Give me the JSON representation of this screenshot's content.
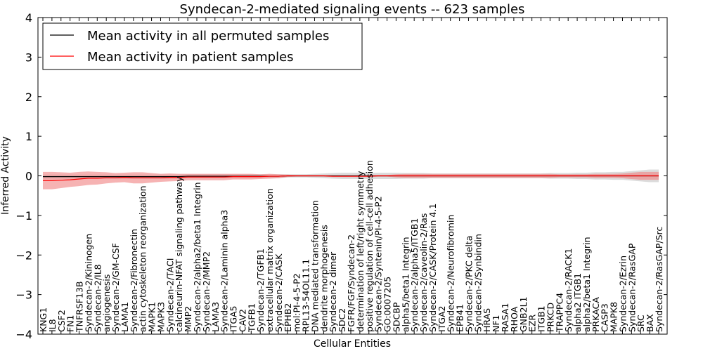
{
  "chart_data": {
    "type": "line",
    "title": "Syndecan-2-mediated signaling events -- 623 samples",
    "xlabel": "Cellular Entities",
    "ylabel": "Inferred Activity",
    "ylim": [
      -4,
      4
    ],
    "yticks": [
      -4,
      -3,
      -2,
      -1,
      0,
      1,
      2,
      3,
      4
    ],
    "ytick_labels": [
      "−4",
      "−3",
      "−2",
      "−1",
      "0",
      "1",
      "2",
      "3",
      "4"
    ],
    "grid": false,
    "legend_position": "top-left",
    "categories": [
      "KNG1",
      "IL8",
      "CSF2",
      "FN1",
      "TNFRSF13B",
      "Syndecan-2/Kininogen",
      "Syndecan-2/IL8",
      "angiogenesis",
      "Syndecan-2/GM-CSF",
      "LAMA1",
      "Syndecan-2/Fibronectin",
      "actin cytoskeleton reorganization",
      "MAPK1",
      "MAPK3",
      "Syndecan-2/TACI",
      "calcineurin-NFAT signaling pathway",
      "MMP2",
      "Syndecan-2/alpha2/beta1 Integrin",
      "Syndecan-2/MMP2",
      "LAMA3",
      "Syndecan-2/Laminin alpha3",
      "ITGA5",
      "CAV2",
      "TGFB1",
      "Syndecan-2/TGFB1",
      "extracellular matrix organization",
      "Syndecan-2/CASK",
      "EPHB2",
      "mol:PI-4-5-P2",
      "RPL13-54OL11.1",
      "DNA mediated transformation",
      "dendrite morphogenesis",
      "Syndecan-2 dimer",
      "SDC2",
      "FGFR/FGF/Syndecan-2",
      "determination of left/right symmetry",
      "positive regulation of cell-cell adhesion",
      "Syndecan-2/Syntenin/PI-4-5-P2",
      "GO:0007205",
      "SDCBP",
      "alpha5/beta1 Integrin",
      "Syndecan-2/alpha5/ITGB1",
      "Syndecan-2/caveolin-2/Ras",
      "Syndecan-2/CASK/Protein 4.1",
      "ITGA2",
      "Syndecan-2/Neurofibromin",
      "EPB41",
      "Syndecan-2/PKC delta",
      "Syndecan-2/Synbindin",
      "HRAS",
      "NF1",
      "RASA1",
      "RHOA",
      "GNB2L1",
      "EZR",
      "ITGB1",
      "PRKCD",
      "TRAPPC4",
      "Syndecan-2/RACK1",
      "alpha2 ITGB1",
      "alpha2/beta1 Integrin",
      "PRKACA",
      "CASP3",
      "MAPK8",
      "Syndecan-2/Ezrin",
      "Syndecan-2/RasGAP",
      "SRC",
      "BAX",
      "Syndecan-2/RasGAP/Src"
    ],
    "series": [
      {
        "name": "Mean activity in all permuted samples",
        "color": "#000000",
        "band_color": "#c0c0c0",
        "values": [
          -0.02,
          -0.02,
          -0.02,
          -0.02,
          -0.02,
          -0.02,
          -0.02,
          -0.02,
          -0.02,
          -0.02,
          -0.02,
          -0.02,
          -0.02,
          -0.02,
          -0.02,
          -0.02,
          -0.01,
          -0.01,
          -0.01,
          -0.01,
          -0.01,
          -0.01,
          -0.01,
          -0.01,
          -0.01,
          -0.01,
          -0.01,
          0,
          0,
          0,
          0,
          0,
          0,
          0,
          0,
          0,
          0,
          0,
          0,
          0,
          0,
          0,
          0,
          0,
          0,
          0,
          0,
          0,
          0,
          0,
          0,
          0,
          0,
          0,
          0,
          0,
          0,
          0,
          0,
          0,
          0,
          0,
          0,
          0,
          0,
          0,
          0,
          0,
          0
        ],
        "band": [
          0.05,
          0.05,
          0.05,
          0.05,
          0.05,
          0.05,
          0.05,
          0.05,
          0.05,
          0.05,
          0.05,
          0.05,
          0.05,
          0.05,
          0.05,
          0.05,
          0.05,
          0.05,
          0.05,
          0.05,
          0.05,
          0.05,
          0.05,
          0.05,
          0.05,
          0.05,
          0.05,
          0.04,
          0.04,
          0.04,
          0.05,
          0.06,
          0.07,
          0.08,
          0.08,
          0.08,
          0.08,
          0.08,
          0.08,
          0.08,
          0.07,
          0.07,
          0.07,
          0.06,
          0.06,
          0.06,
          0.06,
          0.06,
          0.06,
          0.06,
          0.06,
          0.06,
          0.06,
          0.06,
          0.06,
          0.06,
          0.07,
          0.07,
          0.07,
          0.08,
          0.08,
          0.09,
          0.09,
          0.1,
          0.1,
          0.12,
          0.14,
          0.16,
          0.16
        ]
      },
      {
        "name": "Mean activity in patient samples",
        "color": "#ff0000",
        "band_color": "#f08080",
        "values": [
          -0.12,
          -0.12,
          -0.11,
          -0.1,
          -0.08,
          -0.06,
          -0.06,
          -0.05,
          -0.05,
          -0.04,
          -0.05,
          -0.05,
          -0.05,
          -0.05,
          -0.04,
          -0.04,
          -0.03,
          -0.03,
          -0.03,
          -0.03,
          -0.03,
          -0.02,
          -0.02,
          -0.02,
          -0.02,
          -0.01,
          -0.01,
          0,
          0,
          0,
          0,
          0,
          -0.01,
          -0.01,
          -0.01,
          -0.01,
          -0.01,
          0,
          0,
          0,
          0,
          0,
          0,
          0,
          0,
          0,
          0,
          0,
          0,
          0,
          0,
          0,
          0,
          0,
          0,
          0,
          0,
          0,
          0,
          0,
          0,
          0,
          0,
          0,
          0,
          0,
          0,
          0,
          0
        ],
        "band": [
          0.22,
          0.22,
          0.2,
          0.18,
          0.18,
          0.17,
          0.16,
          0.14,
          0.12,
          0.12,
          0.14,
          0.14,
          0.12,
          0.1,
          0.1,
          0.09,
          0.08,
          0.08,
          0.08,
          0.08,
          0.08,
          0.07,
          0.07,
          0.07,
          0.06,
          0.06,
          0.05,
          0.03,
          0.02,
          0.02,
          0.02,
          0.02,
          0.02,
          0.02,
          0.02,
          0.02,
          0.02,
          0.02,
          0.02,
          0.04,
          0.05,
          0.05,
          0.05,
          0.05,
          0.05,
          0.05,
          0.05,
          0.05,
          0.05,
          0.05,
          0.05,
          0.05,
          0.05,
          0.05,
          0.05,
          0.05,
          0.05,
          0.04,
          0.04,
          0.04,
          0.04,
          0.05,
          0.05,
          0.05,
          0.06,
          0.08,
          0.1,
          0.1,
          0.1
        ]
      }
    ]
  }
}
